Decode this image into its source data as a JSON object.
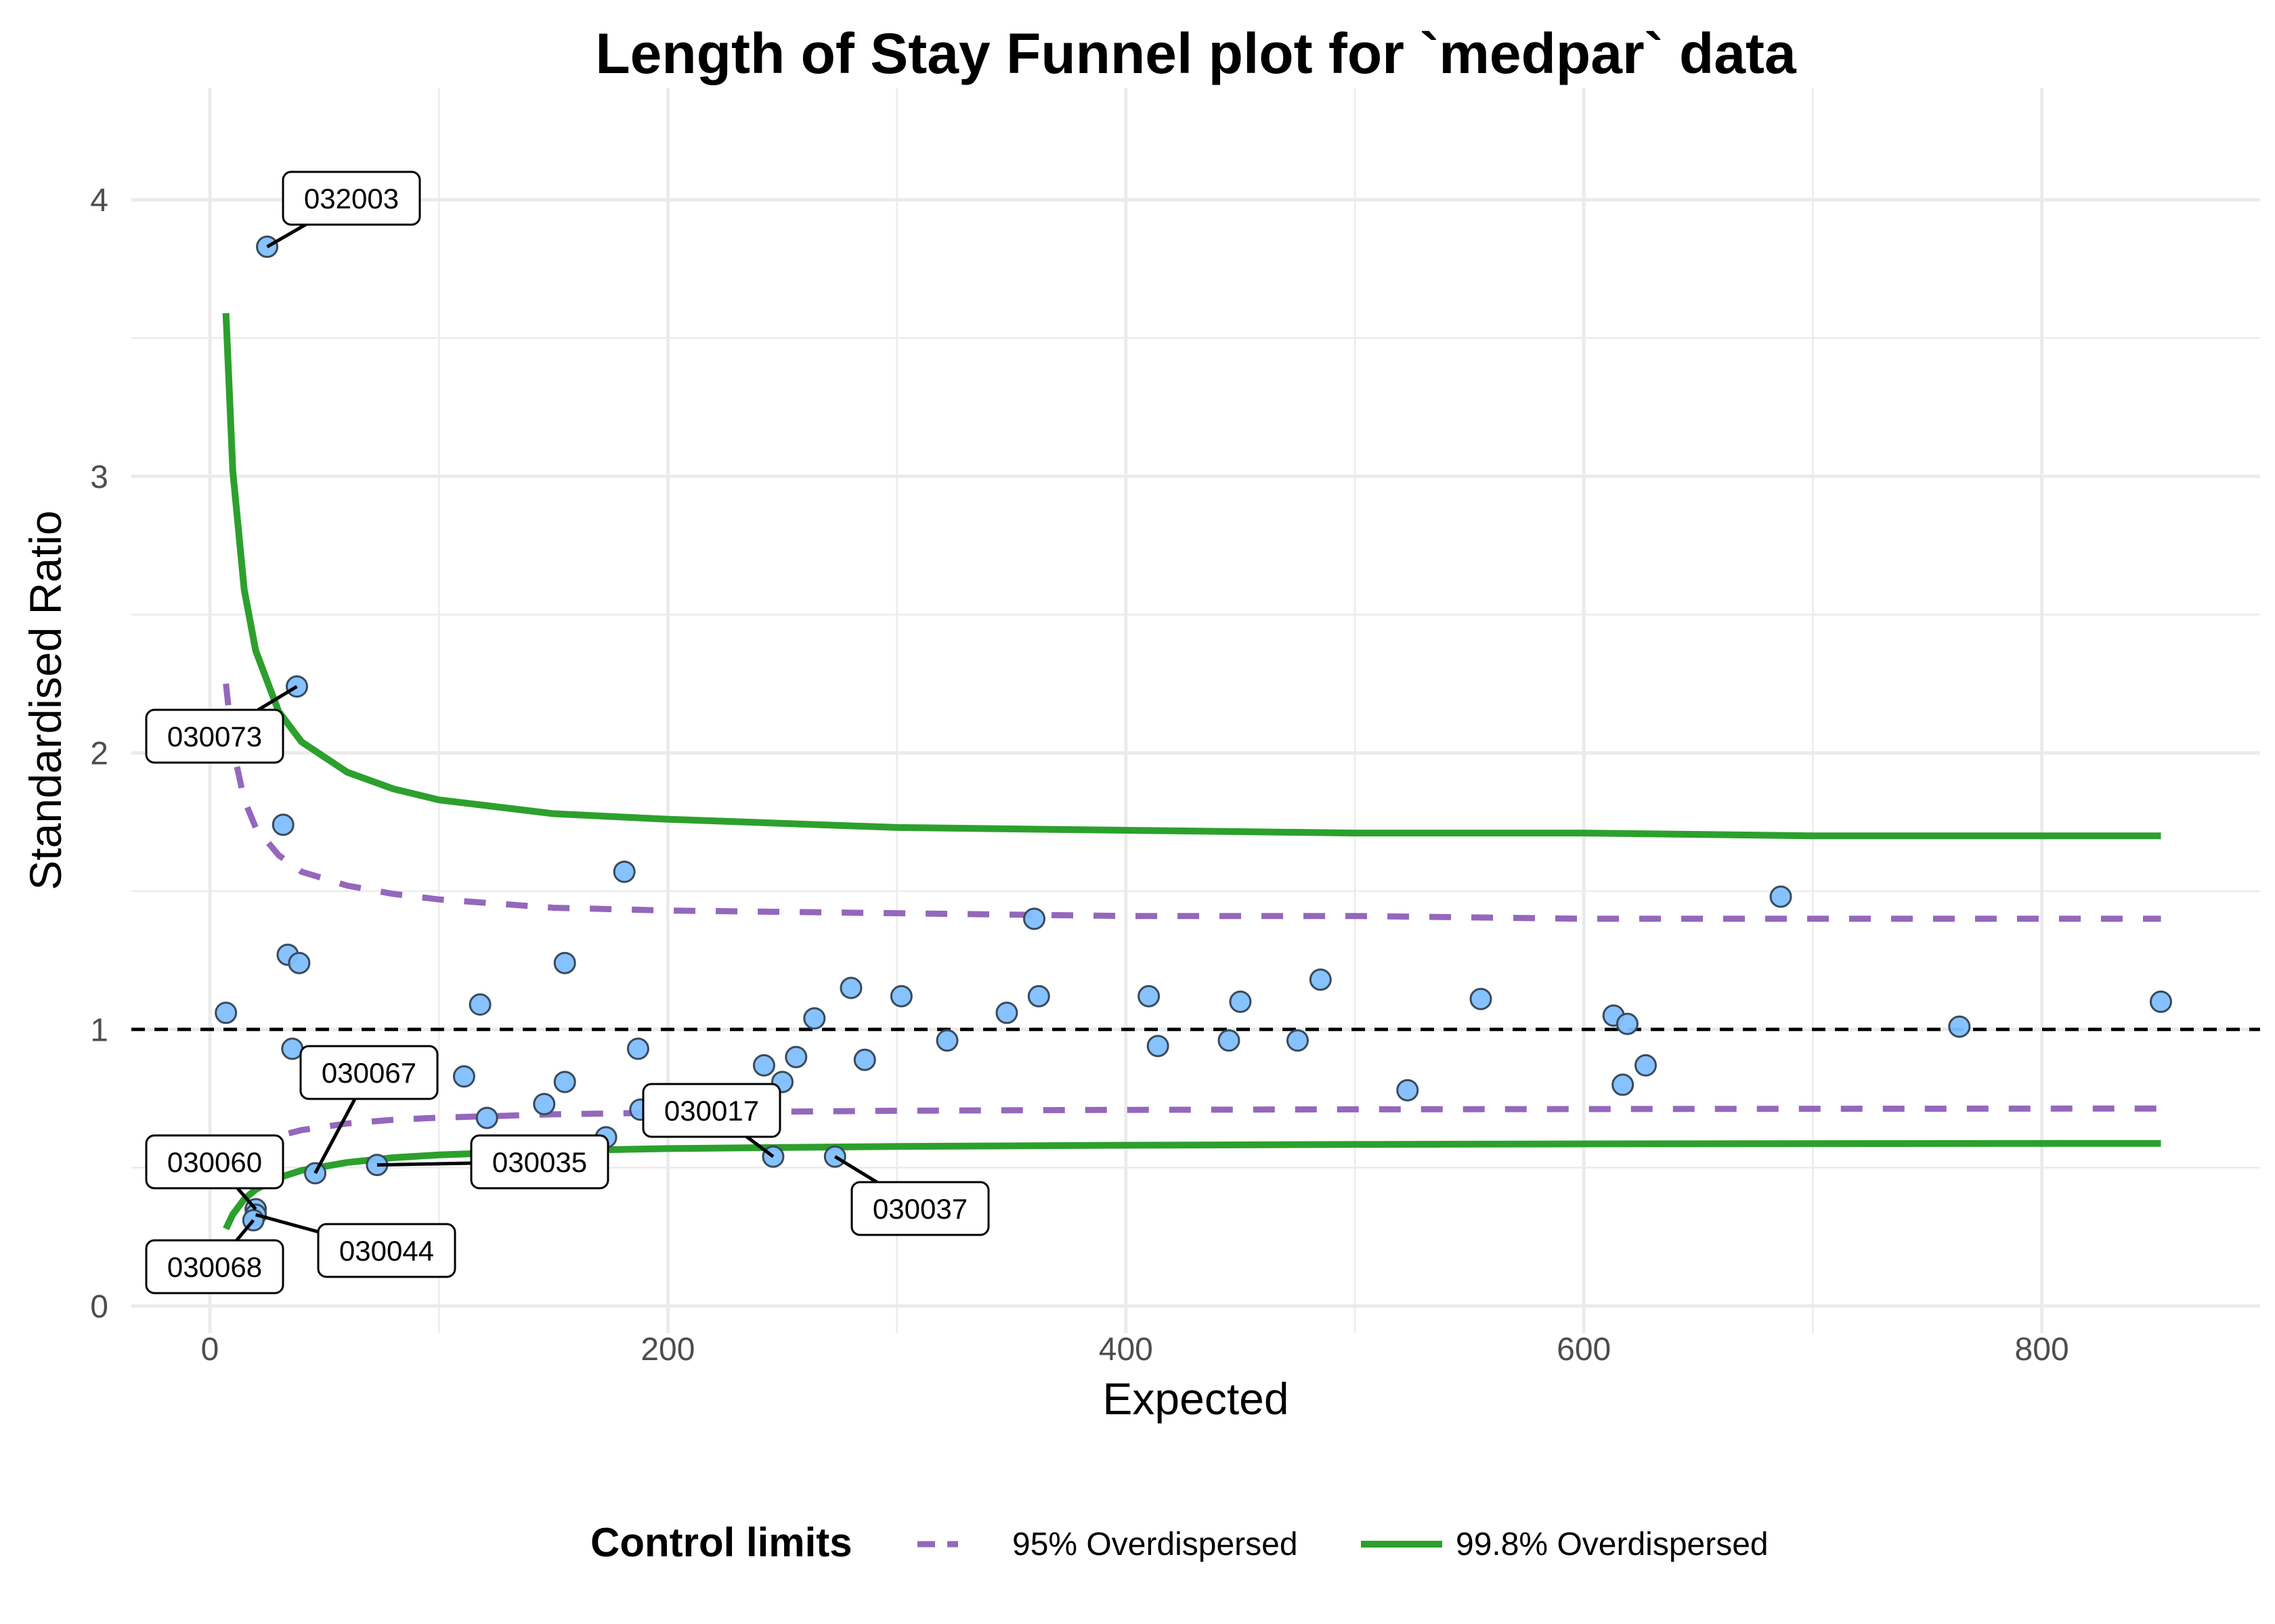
{
  "chart_data": {
    "type": "scatter",
    "title": "Length of Stay Funnel plot for `medpar` data",
    "xlabel": "Expected",
    "ylabel": "Standardised Ratio",
    "xlim": [
      -35,
      895
    ],
    "ylim": [
      0,
      4.4
    ],
    "x_ticks": [
      0,
      200,
      400,
      600,
      800
    ],
    "y_ticks": [
      0,
      1,
      2,
      3,
      4
    ],
    "grid": true,
    "legend": {
      "title": "Control limits",
      "position": "bottom",
      "entries": [
        {
          "name": "95% Overdispersed",
          "style": "dashed",
          "color": "#9467BD"
        },
        {
          "name": "99.8% Overdispersed",
          "style": "solid",
          "color": "#2CA02C"
        }
      ]
    },
    "target_line": {
      "y": 1,
      "style": "dashed",
      "color": "#000000"
    },
    "point_color": "#7FBFFF",
    "points": [
      {
        "x": 7,
        "y": 1.06
      },
      {
        "x": 25,
        "y": 3.83,
        "label": "032003"
      },
      {
        "x": 38,
        "y": 2.24,
        "label": "030073"
      },
      {
        "x": 32,
        "y": 1.74
      },
      {
        "x": 34,
        "y": 1.27
      },
      {
        "x": 39,
        "y": 1.24
      },
      {
        "x": 36,
        "y": 0.93
      },
      {
        "x": 20,
        "y": 0.35,
        "label": "030060"
      },
      {
        "x": 20,
        "y": 0.33,
        "label": "030044"
      },
      {
        "x": 19,
        "y": 0.31,
        "label": "030068"
      },
      {
        "x": 46,
        "y": 0.48,
        "label": "030067"
      },
      {
        "x": 73,
        "y": 0.51,
        "label": "030035"
      },
      {
        "x": 111,
        "y": 0.83
      },
      {
        "x": 118,
        "y": 1.09
      },
      {
        "x": 121,
        "y": 0.68
      },
      {
        "x": 146,
        "y": 0.73
      },
      {
        "x": 155,
        "y": 0.81
      },
      {
        "x": 155,
        "y": 1.24
      },
      {
        "x": 173,
        "y": 0.61
      },
      {
        "x": 181,
        "y": 1.57
      },
      {
        "x": 187,
        "y": 0.93
      },
      {
        "x": 188,
        "y": 0.71
      },
      {
        "x": 242,
        "y": 0.87
      },
      {
        "x": 246,
        "y": 0.54,
        "label": "030017"
      },
      {
        "x": 250,
        "y": 0.81
      },
      {
        "x": 256,
        "y": 0.9
      },
      {
        "x": 264,
        "y": 1.04
      },
      {
        "x": 273,
        "y": 0.54,
        "label": "030037"
      },
      {
        "x": 280,
        "y": 1.15
      },
      {
        "x": 286,
        "y": 0.89
      },
      {
        "x": 302,
        "y": 1.12
      },
      {
        "x": 322,
        "y": 0.96
      },
      {
        "x": 348,
        "y": 1.06
      },
      {
        "x": 360,
        "y": 1.4
      },
      {
        "x": 362,
        "y": 1.12
      },
      {
        "x": 410,
        "y": 1.12
      },
      {
        "x": 414,
        "y": 0.94
      },
      {
        "x": 445,
        "y": 0.96
      },
      {
        "x": 450,
        "y": 1.1
      },
      {
        "x": 475,
        "y": 0.96
      },
      {
        "x": 485,
        "y": 1.18
      },
      {
        "x": 523,
        "y": 0.78
      },
      {
        "x": 555,
        "y": 1.11
      },
      {
        "x": 613,
        "y": 1.05
      },
      {
        "x": 617,
        "y": 0.8
      },
      {
        "x": 619,
        "y": 1.02
      },
      {
        "x": 627,
        "y": 0.87
      },
      {
        "x": 686,
        "y": 1.48
      },
      {
        "x": 764,
        "y": 1.01
      },
      {
        "x": 852,
        "y": 1.1
      }
    ],
    "limits_x": [
      7,
      10,
      15,
      20,
      30,
      40,
      60,
      80,
      100,
      150,
      200,
      300,
      400,
      500,
      600,
      700,
      852
    ],
    "series": [
      {
        "name": "99.8% Overdispersed",
        "bound": "upper",
        "values": [
          3.59,
          3.02,
          2.59,
          2.37,
          2.15,
          2.04,
          1.93,
          1.87,
          1.83,
          1.78,
          1.76,
          1.73,
          1.72,
          1.71,
          1.71,
          1.7,
          1.7
        ]
      },
      {
        "name": "99.8% Overdispersed",
        "bound": "lower",
        "values": [
          0.279,
          0.331,
          0.386,
          0.421,
          0.464,
          0.49,
          0.519,
          0.536,
          0.546,
          0.561,
          0.569,
          0.577,
          0.581,
          0.584,
          0.586,
          0.587,
          0.588
        ]
      },
      {
        "name": "95% Overdispersed",
        "bound": "upper",
        "values": [
          2.25,
          2.02,
          1.83,
          1.73,
          1.63,
          1.57,
          1.52,
          1.49,
          1.47,
          1.44,
          1.43,
          1.42,
          1.41,
          1.41,
          1.4,
          1.4,
          1.4
        ]
      },
      {
        "name": "95% Overdispersed",
        "bound": "lower",
        "values": [
          0.444,
          0.496,
          0.547,
          0.578,
          0.615,
          0.636,
          0.66,
          0.673,
          0.681,
          0.693,
          0.699,
          0.706,
          0.709,
          0.711,
          0.712,
          0.713,
          0.714
        ]
      }
    ]
  }
}
